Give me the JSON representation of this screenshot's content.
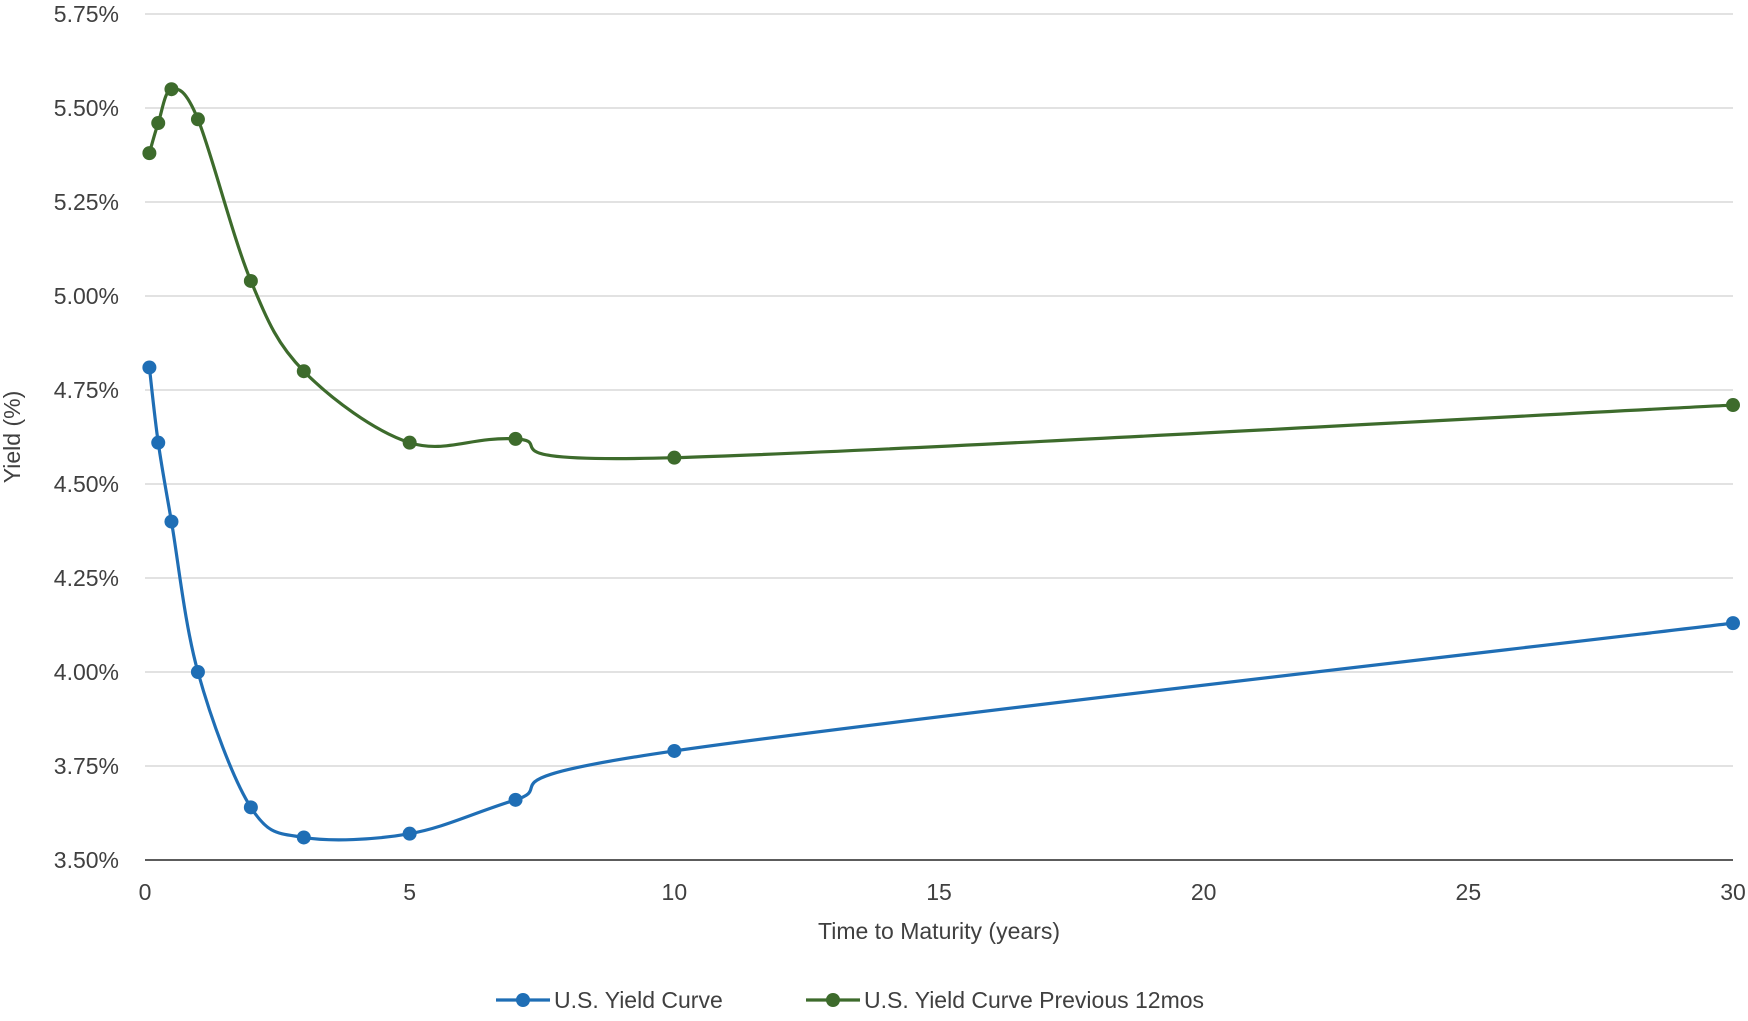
{
  "chart_data": {
    "type": "line",
    "title": "",
    "xlabel": "Time to Maturity (years)",
    "ylabel": "Yield (%)",
    "xlim": [
      0,
      30
    ],
    "ylim": [
      3.5,
      5.75
    ],
    "x_ticks": [
      0,
      5,
      10,
      15,
      20,
      25,
      30
    ],
    "x_tick_labels": [
      "0",
      "5",
      "10",
      "15",
      "20",
      "25",
      "30"
    ],
    "y_ticks": [
      3.5,
      3.75,
      4.0,
      4.25,
      4.5,
      4.75,
      5.0,
      5.25,
      5.5,
      5.75
    ],
    "y_tick_labels": [
      "3.50%",
      "3.75%",
      "4.00%",
      "4.25%",
      "4.50%",
      "4.75%",
      "5.00%",
      "5.25%",
      "5.50%",
      "5.75%"
    ],
    "grid": "horizontal",
    "legend_position": "bottom",
    "series": [
      {
        "name": "U.S. Yield Curve",
        "color": "#1f6eb5",
        "x": [
          0.083,
          0.25,
          0.5,
          1,
          2,
          3,
          5,
          7,
          10,
          30
        ],
        "y": [
          4.81,
          4.61,
          4.4,
          4.0,
          3.64,
          3.56,
          3.57,
          3.66,
          3.79,
          4.13
        ]
      },
      {
        "name": "U.S. Yield Curve Previous 12mos",
        "color": "#3d6b2c",
        "x": [
          0.083,
          0.25,
          0.5,
          1,
          2,
          3,
          5,
          7,
          10,
          30
        ],
        "y": [
          5.38,
          5.46,
          5.55,
          5.47,
          5.04,
          4.8,
          4.61,
          4.62,
          4.57,
          4.71
        ]
      }
    ]
  }
}
